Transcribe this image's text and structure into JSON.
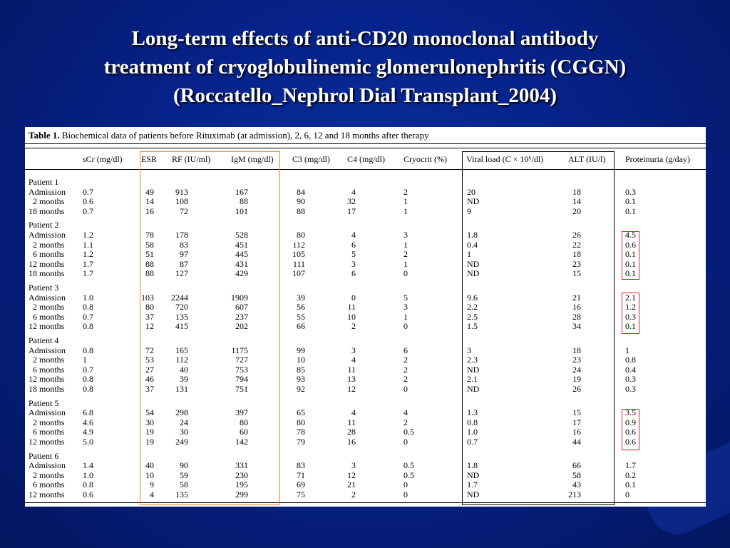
{
  "slide": {
    "title_lines": [
      "Long-term effects of anti-CD20 monoclonal antibody",
      "treatment of cryoglobulinemic glomerulonephritis (CGGN)",
      "(Roccatello_Nephrol Dial Transplant_2004)"
    ]
  },
  "table": {
    "caption_label": "Table 1.",
    "caption_text": "Biochemical data of patients before Rituximab (at admission), 2, 6, 12 and 18 months after therapy",
    "headers": [
      "sCr (mg/dl)",
      "ESR",
      "RF (IU/ml)",
      "IgM (mg/dl)",
      "C3 (mg/dl)",
      "C4 (mg/dl)",
      "Cryocrit (%)",
      "Viral load (C × 10⁶/dl)",
      "ALT (IU/l)",
      "Proteinuria (g/day)"
    ],
    "patients": [
      {
        "name": "Patient 1",
        "rows": [
          [
            "Admission",
            "0.7",
            "49",
            "913",
            "167",
            "84",
            "4",
            "2",
            "20",
            "18",
            "0.3"
          ],
          [
            "2 months",
            "0.6",
            "14",
            "108",
            "88",
            "90",
            "32",
            "1",
            "ND",
            "14",
            "0.1"
          ],
          [
            "18 months",
            "0.7",
            "16",
            "72",
            "101",
            "88",
            "17",
            "1",
            "9",
            "20",
            "0.1"
          ]
        ]
      },
      {
        "name": "Patient 2",
        "rows": [
          [
            "Admission",
            "1.2",
            "78",
            "178",
            "528",
            "80",
            "4",
            "3",
            "1.8",
            "26",
            "4.5"
          ],
          [
            "2 months",
            "1.1",
            "58",
            "83",
            "451",
            "112",
            "6",
            "1",
            "0.4",
            "22",
            "0.6"
          ],
          [
            "6 months",
            "1.2",
            "51",
            "97",
            "445",
            "105",
            "5",
            "2",
            "1",
            "18",
            "0.1"
          ],
          [
            "12 months",
            "1.7",
            "88",
            "87",
            "431",
            "111",
            "3",
            "1",
            "ND",
            "23",
            "0.1"
          ],
          [
            "18 months",
            "1.7",
            "88",
            "127",
            "429",
            "107",
            "6",
            "0",
            "ND",
            "15",
            "0.1"
          ]
        ]
      },
      {
        "name": "Patient 3",
        "rows": [
          [
            "Admission",
            "1.0",
            "103",
            "2244",
            "1909",
            "39",
            "0",
            "5",
            "9.6",
            "21",
            "2.1"
          ],
          [
            "2 months",
            "0.8",
            "80",
            "720",
            "607",
            "56",
            "11",
            "3",
            "2.2",
            "16",
            "1.2"
          ],
          [
            "6 months",
            "0.7",
            "37",
            "135",
            "237",
            "55",
            "10",
            "1",
            "2.5",
            "28",
            "0.3"
          ],
          [
            "12 months",
            "0.8",
            "12",
            "415",
            "202",
            "66",
            "2",
            "0",
            "1.5",
            "34",
            "0.1"
          ]
        ]
      },
      {
        "name": "Patient 4",
        "rows": [
          [
            "Admission",
            "0.8",
            "72",
            "165",
            "1175",
            "99",
            "3",
            "6",
            "3",
            "18",
            "1"
          ],
          [
            "2 months",
            "1",
            "53",
            "112",
            "727",
            "10",
            "4",
            "2",
            "2.3",
            "23",
            "0.8"
          ],
          [
            "6 months",
            "0.7",
            "27",
            "40",
            "753",
            "85",
            "11",
            "2",
            "ND",
            "24",
            "0.4"
          ],
          [
            "12 months",
            "0.8",
            "46",
            "39",
            "794",
            "93",
            "13",
            "2",
            "2.1",
            "19",
            "0.3"
          ],
          [
            "18 months",
            "0.8",
            "37",
            "131",
            "751",
            "92",
            "12",
            "0",
            "ND",
            "26",
            "0.3"
          ]
        ]
      },
      {
        "name": "Patient 5",
        "rows": [
          [
            "Admission",
            "6.8",
            "54",
            "298",
            "397",
            "65",
            "4",
            "4",
            "1.3",
            "15",
            "3.5"
          ],
          [
            "2 months",
            "4.6",
            "30",
            "24",
            "80",
            "80",
            "11",
            "2",
            "0.8",
            "17",
            "0.9"
          ],
          [
            "6 months",
            "4.9",
            "19",
            "30",
            "60",
            "78",
            "28",
            "0.5",
            "1.0",
            "16",
            "0.6"
          ],
          [
            "12 months",
            "5.0",
            "19",
            "249",
            "142",
            "79",
            "16",
            "0",
            "0.7",
            "44",
            "0.6"
          ]
        ]
      },
      {
        "name": "Patient 6",
        "rows": [
          [
            "Admission",
            "1.4",
            "40",
            "90",
            "331",
            "83",
            "3",
            "0.5",
            "1.8",
            "66",
            "1.7"
          ],
          [
            "2 months",
            "1.0",
            "10",
            "59",
            "230",
            "71",
            "12",
            "0.5",
            "ND",
            "58",
            "0.2"
          ],
          [
            "6 months",
            "0.8",
            "9",
            "58",
            "195",
            "69",
            "21",
            "0",
            "1.7",
            "43",
            "0.1"
          ],
          [
            "12 months",
            "0.6",
            "4",
            "135",
            "299",
            "75",
            "2",
            "0",
            "ND",
            "213",
            "0"
          ]
        ]
      }
    ]
  },
  "colors": {
    "background": "#06228a",
    "title": "#ffffff",
    "highlight_orange": "#e8842c",
    "highlight_black": "#000000",
    "highlight_red": "#e02020"
  }
}
